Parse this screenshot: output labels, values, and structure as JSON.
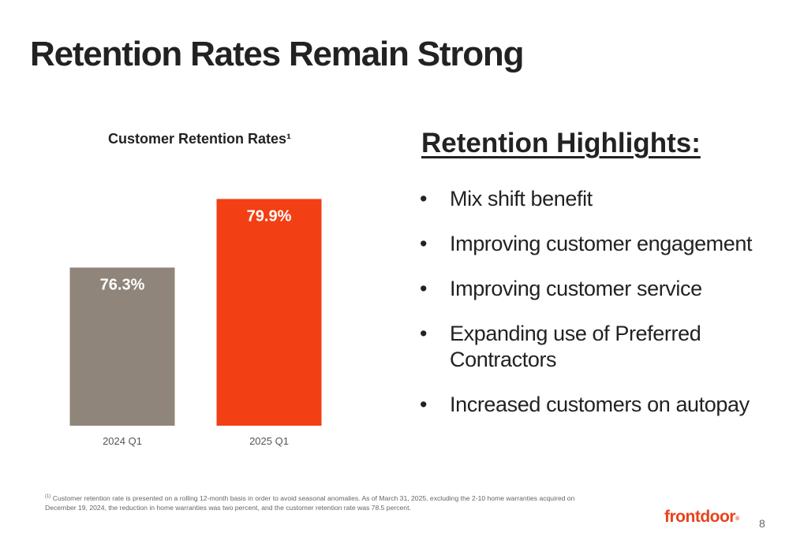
{
  "slide": {
    "title": "Retention Rates Remain Strong",
    "page_number": "8"
  },
  "chart_data": {
    "type": "bar",
    "title": "Customer Retention Rates¹",
    "categories": [
      "2024 Q1",
      "2025 Q1"
    ],
    "values": [
      76.3,
      79.9
    ],
    "value_labels": [
      "76.3%",
      "79.9%"
    ],
    "colors": [
      "#8f857a",
      "#f23f14"
    ],
    "xlabel": "",
    "ylabel": "",
    "ylim": [
      68,
      80
    ],
    "grid": false,
    "legend": "none"
  },
  "highlights": {
    "title": "Retention Highlights:",
    "bullet": "•",
    "items": [
      "Mix shift benefit",
      "Improving customer engagement",
      "Improving customer service",
      "Expanding use of Preferred Contractors",
      "Increased customers on autopay"
    ]
  },
  "footnote": {
    "marker": "(1)",
    "text": "Customer retention rate is presented on a rolling 12-month basis in order to avoid seasonal anomalies. As of March 31, 2025, excluding the 2-10 home warranties acquired on December 19, 2024, the reduction in home warranties was two percent, and the customer retention rate was 78.5 percent."
  },
  "logo": {
    "text": "frontdoor",
    "mark": "®",
    "color": "#e8421b"
  }
}
